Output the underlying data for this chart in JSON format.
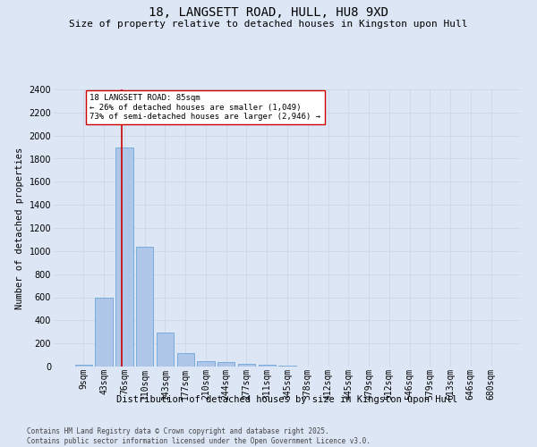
{
  "title": "18, LANGSETT ROAD, HULL, HU8 9XD",
  "subtitle": "Size of property relative to detached houses in Kingston upon Hull",
  "xlabel": "Distribution of detached houses by size in Kingston upon Hull",
  "ylabel": "Number of detached properties",
  "categories": [
    "9sqm",
    "43sqm",
    "76sqm",
    "110sqm",
    "143sqm",
    "177sqm",
    "210sqm",
    "244sqm",
    "277sqm",
    "311sqm",
    "345sqm",
    "378sqm",
    "412sqm",
    "445sqm",
    "479sqm",
    "512sqm",
    "546sqm",
    "579sqm",
    "613sqm",
    "646sqm",
    "680sqm"
  ],
  "values": [
    15,
    600,
    1900,
    1040,
    295,
    115,
    50,
    40,
    25,
    18,
    5,
    2,
    1,
    1,
    0,
    0,
    0,
    0,
    0,
    0,
    0
  ],
  "bar_color": "#aec6e8",
  "bar_edge_color": "#5b9bd5",
  "vline_x": 1.85,
  "vline_color": "#cc0000",
  "annotation_text": "18 LANGSETT ROAD: 85sqm\n← 26% of detached houses are smaller (1,049)\n73% of semi-detached houses are larger (2,946) →",
  "annotation_box_color": "#ffffff",
  "annotation_box_edge_color": "#cc0000",
  "ylim": [
    0,
    2400
  ],
  "yticks": [
    0,
    200,
    400,
    600,
    800,
    1000,
    1200,
    1400,
    1600,
    1800,
    2000,
    2200,
    2400
  ],
  "grid_color": "#c8d4e8",
  "background_color": "#dce6f5",
  "footer": "Contains HM Land Registry data © Crown copyright and database right 2025.\nContains public sector information licensed under the Open Government Licence v3.0.",
  "title_fontsize": 10,
  "subtitle_fontsize": 8,
  "ylabel_fontsize": 7.5,
  "xlabel_fontsize": 7.5,
  "tick_fontsize": 7,
  "annotation_fontsize": 6.5,
  "footer_fontsize": 5.5
}
